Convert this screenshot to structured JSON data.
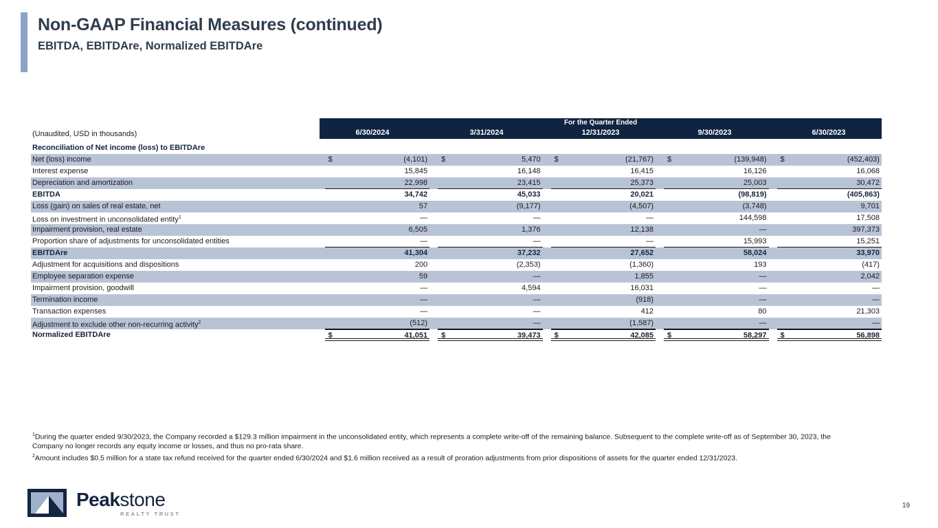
{
  "header": {
    "title": "Non-GAAP Financial Measures (continued)",
    "subtitle": "EBITDA, EBITDAre, Normalized EBITDAre"
  },
  "table": {
    "unaudited_label": "(Unaudited, USD in thousands)",
    "quarter_header": "For the Quarter Ended",
    "columns": [
      "6/30/2024",
      "3/31/2024",
      "12/31/2023",
      "9/30/2023",
      "6/30/2023"
    ],
    "section_header": "Reconciliation of Net income (loss) to EBITDAre",
    "currency_symbol": "$",
    "rows": [
      {
        "label": "Net (loss) income",
        "sup": "",
        "dollar": true,
        "shaded": true,
        "bold": false,
        "line_below": false,
        "total": false,
        "values": [
          "(4,101)",
          "5,470",
          "(21,767)",
          "(139,948)",
          "(452,403)"
        ]
      },
      {
        "label": "Interest expense",
        "sup": "",
        "dollar": false,
        "shaded": false,
        "bold": false,
        "line_below": false,
        "total": false,
        "values": [
          "15,845",
          "16,148",
          "16,415",
          "16,126",
          "16,068"
        ]
      },
      {
        "label": "Depreciation and amortization",
        "sup": "",
        "dollar": false,
        "shaded": true,
        "bold": false,
        "line_below": true,
        "total": false,
        "values": [
          "22,998",
          "23,415",
          "25,373",
          "25,003",
          "30,472"
        ]
      },
      {
        "label": "EBITDA",
        "sup": "",
        "dollar": false,
        "shaded": false,
        "bold": true,
        "line_below": false,
        "total": false,
        "values": [
          "34,742",
          "45,033",
          "20,021",
          "(98,819)",
          "(405,863)"
        ]
      },
      {
        "label": "Loss (gain) on sales of real estate, net",
        "sup": "",
        "dollar": false,
        "shaded": true,
        "bold": false,
        "line_below": false,
        "total": false,
        "values": [
          "57",
          "(9,177)",
          "(4,507)",
          "(3,748)",
          "9,701"
        ]
      },
      {
        "label": "Loss on investment in unconsolidated entity",
        "sup": "1",
        "dollar": false,
        "shaded": false,
        "bold": false,
        "line_below": false,
        "total": false,
        "values": [
          "—",
          "—",
          "—",
          "144,598",
          "17,508"
        ]
      },
      {
        "label": "Impairment provision, real estate",
        "sup": "",
        "dollar": false,
        "shaded": true,
        "bold": false,
        "line_below": false,
        "total": false,
        "values": [
          "6,505",
          "1,376",
          "12,138",
          "—",
          "397,373"
        ]
      },
      {
        "label": "Proportion share of adjustments for unconsolidated entities",
        "sup": "",
        "dollar": false,
        "shaded": false,
        "bold": false,
        "line_below": true,
        "total": false,
        "values": [
          "—",
          "—",
          "—",
          "15,993",
          "15,251"
        ]
      },
      {
        "label": "EBITDAre",
        "sup": "",
        "dollar": false,
        "shaded": true,
        "bold": true,
        "line_below": false,
        "total": false,
        "values": [
          "41,304",
          "37,232",
          "27,652",
          "58,024",
          "33,970"
        ]
      },
      {
        "label": "Adjustment for acquisitions and dispositions",
        "sup": "",
        "dollar": false,
        "shaded": false,
        "bold": false,
        "line_below": false,
        "total": false,
        "values": [
          "200",
          "(2,353)",
          "(1,360)",
          "193",
          "(417)"
        ]
      },
      {
        "label": "Employee separation expense",
        "sup": "",
        "dollar": false,
        "shaded": true,
        "bold": false,
        "line_below": false,
        "total": false,
        "values": [
          "59",
          "—",
          "1,855",
          "—",
          "2,042"
        ]
      },
      {
        "label": "Impairment provision, goodwill",
        "sup": "",
        "dollar": false,
        "shaded": false,
        "bold": false,
        "line_below": false,
        "total": false,
        "values": [
          "—",
          "4,594",
          "16,031",
          "—",
          "—"
        ]
      },
      {
        "label": "Termination income",
        "sup": "",
        "dollar": false,
        "shaded": true,
        "bold": false,
        "line_below": false,
        "total": false,
        "values": [
          "—",
          "—",
          "(918)",
          "—",
          "—"
        ]
      },
      {
        "label": "Transaction expenses",
        "sup": "",
        "dollar": false,
        "shaded": false,
        "bold": false,
        "line_below": false,
        "total": false,
        "values": [
          "—",
          "—",
          "412",
          "80",
          "21,303"
        ]
      },
      {
        "label": "Adjustment to exclude other non-recurring activity",
        "sup": "2",
        "dollar": false,
        "shaded": true,
        "bold": false,
        "line_below": true,
        "total": false,
        "values": [
          "(512)",
          "—",
          "(1,587)",
          "—",
          "—"
        ]
      },
      {
        "label": "Normalized EBITDAre",
        "sup": "",
        "dollar": true,
        "shaded": false,
        "bold": true,
        "line_below": false,
        "total": true,
        "values": [
          "41,051",
          "39,473",
          "42,085",
          "58,297",
          "56,898"
        ]
      }
    ]
  },
  "footnotes": [
    {
      "sup": "1",
      "text": "During the quarter ended 9/30/2023, the Company recorded a $129.3 million impairment in the unconsolidated entity, which represents a complete write-off of the remaining balance. Subsequent to the complete write-off as of September 30, 2023, the Company no longer records any equity income or losses, and thus no pro-rata share."
    },
    {
      "sup": "2",
      "text": "Amount includes $0.5 million for a state tax refund received for the quarter ended 6/30/2024 and $1.6 million received as a result of proration adjustments from prior dispositions of assets for the quarter ended 12/31/2023."
    }
  ],
  "logo": {
    "brand_bold": "Peak",
    "brand_regular": "stone",
    "tagline": "REALTY TRUST"
  },
  "page_number": "19",
  "colors": {
    "header_band": "#0f2441",
    "row_shade": "#b8c4d6",
    "title_accent": "#8ba3c7",
    "title_text": "#2f3d4d",
    "logo_navy": "#15253f",
    "logo_light_blue": "#9db1ca"
  }
}
